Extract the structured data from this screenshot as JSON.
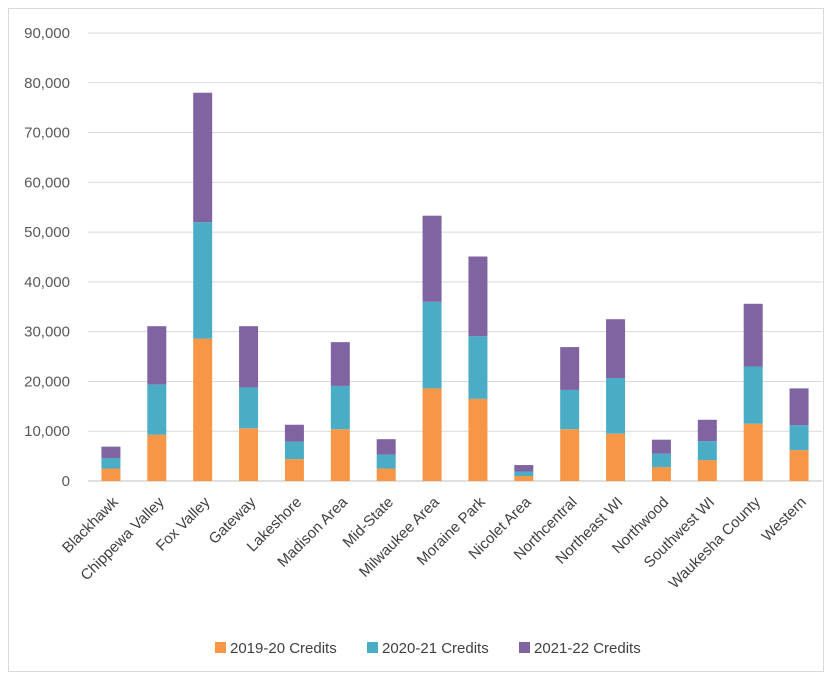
{
  "chart_data": {
    "type": "bar",
    "stacked": true,
    "categories": [
      "Blackhawk",
      "Chippewa Valley",
      "Fox Valley",
      "Gateway",
      "Lakeshore",
      "Madison Area",
      "Mid-State",
      "Milwaukee Area",
      "Moraine Park",
      "Nicolet Area",
      "Northcentral",
      "Northeast WI",
      "Northwood",
      "Southwest WI",
      "Waukesha County",
      "Western"
    ],
    "series": [
      {
        "name": "2019-20 Credits",
        "color": "#F79646",
        "values": [
          2500,
          9300,
          28600,
          10600,
          4400,
          10400,
          2500,
          18600,
          16500,
          1000,
          10400,
          9500,
          2800,
          4200,
          11500,
          6200
        ]
      },
      {
        "name": "2020-21 Credits",
        "color": "#4BACC6",
        "values": [
          2100,
          10100,
          23400,
          8200,
          3500,
          8700,
          2800,
          17400,
          12600,
          900,
          7900,
          11200,
          2700,
          3800,
          11500,
          5000
        ]
      },
      {
        "name": "2021-22 Credits",
        "color": "#8064A2",
        "values": [
          2300,
          11700,
          26000,
          12300,
          3400,
          8800,
          3100,
          17300,
          16000,
          1300,
          8600,
          11800,
          2800,
          4300,
          12600,
          7400
        ]
      }
    ],
    "ylim": [
      0,
      90000
    ],
    "yticks": [
      0,
      10000,
      20000,
      30000,
      40000,
      50000,
      60000,
      70000,
      80000,
      90000
    ],
    "ytick_labels": [
      "0",
      "10,000",
      "20,000",
      "30,000",
      "40,000",
      "50,000",
      "60,000",
      "70,000",
      "80,000",
      "90,000"
    ],
    "grid": true,
    "legend_position": "bottom"
  }
}
